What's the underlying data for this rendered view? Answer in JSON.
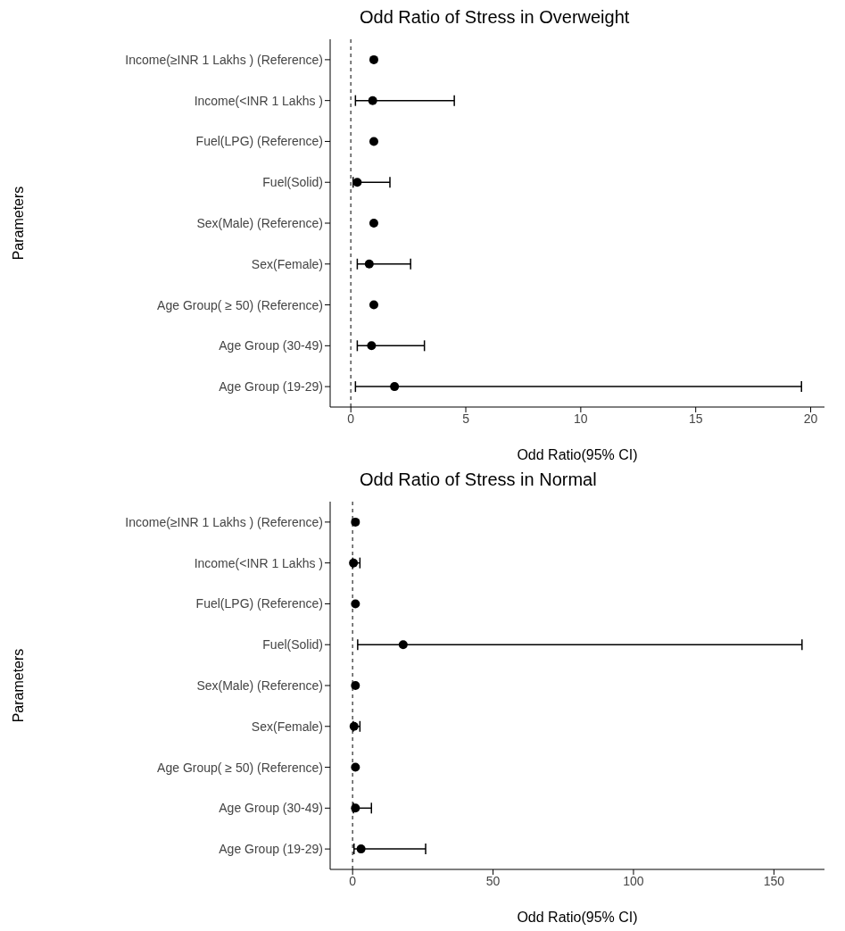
{
  "chart_data": [
    {
      "type": "scatter",
      "orientation": "horizontal",
      "title": "Odd Ratio of Stress in Overweight",
      "xlabel": "Odd Ratio(95% CI)",
      "ylabel": "Parameters",
      "categories": [
        "Income(≥INR 1 Lakhs ) (Reference)",
        "Income(<INR 1 Lakhs )",
        "Fuel(LPG) (Reference)",
        "Fuel(Solid)",
        "Sex(Male) (Reference)",
        "Sex(Female)",
        "Age Group( ≥ 50) (Reference)",
        "Age Group (30-49)",
        "Age Group (19-29)"
      ],
      "series": [
        {
          "color": "#000000",
          "values": [
            1,
            0.95,
            1,
            0.28,
            1,
            0.8,
            1,
            0.9,
            1.9
          ],
          "errors": [
            null,
            [
              0.2,
              4.5
            ],
            null,
            [
              0.1,
              1.7
            ],
            null,
            [
              0.28,
              2.6
            ],
            null,
            [
              0.28,
              3.2
            ],
            [
              0.2,
              19.6
            ]
          ]
        }
      ],
      "xlim": [
        -0.9,
        20.6
      ],
      "xticks": [
        0,
        5,
        10,
        15,
        20
      ],
      "marker": "circle",
      "grid": false,
      "legend": false,
      "ref_lines": [
        {
          "axis": "x",
          "value": 0,
          "line_style": "dashed",
          "color": "#555555"
        }
      ]
    },
    {
      "type": "scatter",
      "orientation": "horizontal",
      "title": "Odd Ratio of Stress in Normal",
      "xlabel": "Odd Ratio(95% CI)",
      "ylabel": "Parameters",
      "categories": [
        "Income(≥INR 1 Lakhs ) (Reference)",
        "Income(<INR 1 Lakhs )",
        "Fuel(LPG) (Reference)",
        "Fuel(Solid)",
        "Sex(Male) (Reference)",
        "Sex(Female)",
        "Age Group( ≥ 50) (Reference)",
        "Age Group (30-49)",
        "Age Group (19-29)"
      ],
      "series": [
        {
          "color": "#000000",
          "values": [
            1,
            0.3,
            1,
            18,
            1,
            0.5,
            1,
            1,
            3
          ],
          "errors": [
            null,
            [
              0.05,
              2.6
            ],
            null,
            [
              1.8,
              160
            ],
            null,
            [
              0.2,
              2.6
            ],
            null,
            [
              0.3,
              6.7
            ],
            [
              0.5,
              26
            ]
          ]
        }
      ],
      "xlim": [
        -8,
        168
      ],
      "xticks": [
        0,
        50,
        100,
        150
      ],
      "marker": "circle",
      "grid": false,
      "legend": false,
      "ref_lines": [
        {
          "axis": "x",
          "value": 0,
          "line_style": "dashed",
          "color": "#555555"
        }
      ]
    }
  ]
}
